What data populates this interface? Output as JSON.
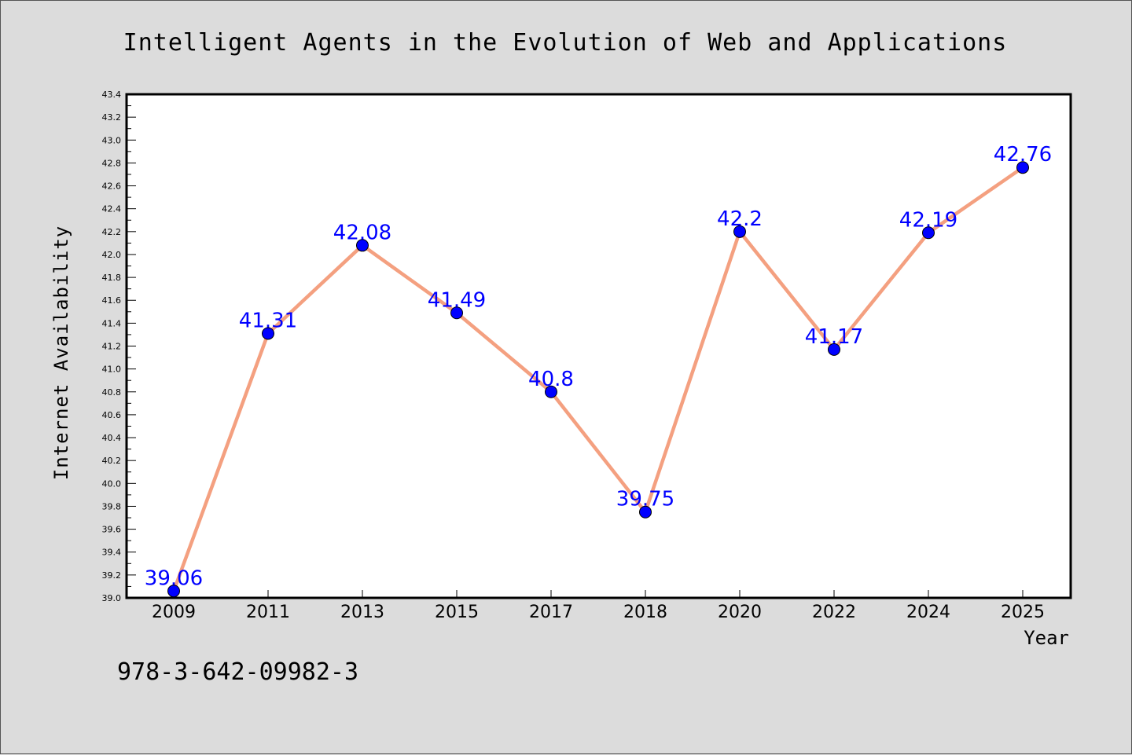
{
  "chart_data": {
    "type": "line",
    "title": "Intelligent Agents in the Evolution of Web and Applications",
    "xlabel": "Year",
    "ylabel": "Internet Availability",
    "categories": [
      "2009",
      "2011",
      "2013",
      "2015",
      "2017",
      "2018",
      "2020",
      "2022",
      "2024",
      "2025"
    ],
    "values": [
      39.06,
      41.31,
      42.08,
      41.49,
      40.8,
      39.75,
      42.2,
      41.17,
      42.19,
      42.76
    ],
    "data_labels": [
      "39.06",
      "41.31",
      "42.08",
      "41.49",
      "40.8",
      "39.75",
      "42.2",
      "41.17",
      "42.19",
      "42.76"
    ],
    "ylim": [
      39.0,
      43.4
    ],
    "yticks": [
      "39.0",
      "39.2",
      "39.4",
      "39.6",
      "39.8",
      "40.0",
      "40.2",
      "40.4",
      "40.6",
      "40.8",
      "41.0",
      "41.2",
      "41.4",
      "41.6",
      "41.8",
      "42.0",
      "42.2",
      "42.4",
      "42.6",
      "42.8",
      "43.0",
      "43.2",
      "43.4"
    ],
    "grid": false,
    "line_color": "#f4a080",
    "marker_color": "#0000ff",
    "label_color": "#0000ff"
  },
  "footnote": "978-3-642-09982-3"
}
